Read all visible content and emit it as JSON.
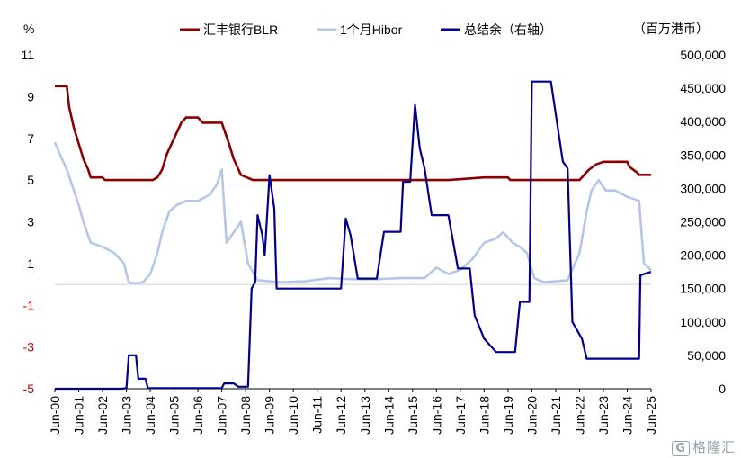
{
  "chart_data": {
    "type": "line",
    "left_unit": "%",
    "right_unit": "（百万港币）",
    "left_ylim": [
      -5,
      11
    ],
    "left_ticks": [
      11,
      9,
      7,
      5,
      3,
      1,
      -1,
      -3,
      -5
    ],
    "right_ylim": [
      0,
      500000
    ],
    "right_ticks": [
      "500,000",
      "450,000",
      "400,000",
      "350,000",
      "300,000",
      "250,000",
      "200,000",
      "150,000",
      "100,000",
      "50,000",
      "0"
    ],
    "x_labels": [
      "Jun-00",
      "Jun-01",
      "Jun-02",
      "Jun-03",
      "Jun-04",
      "Jun-05",
      "Jun-06",
      "Jun-07",
      "Jun-08",
      "Jun-09",
      "Jun-10",
      "Jun-11",
      "Jun-12",
      "Jun-13",
      "Jun-14",
      "Jun-15",
      "Jun-16",
      "Jun-17",
      "Jun-18",
      "Jun-19",
      "Jun-20",
      "Jun-21",
      "Jun-22",
      "Jun-23",
      "Jun-24",
      "Jun-25"
    ],
    "x_range": [
      2000.5,
      2025.5
    ],
    "legend_position": "top",
    "series": [
      {
        "name": "汇丰银行BLR",
        "axis": "left",
        "color": "#8b0000",
        "points": [
          [
            2000.5,
            9.5
          ],
          [
            2001.0,
            9.5
          ],
          [
            2001.1,
            8.5
          ],
          [
            2001.3,
            7.5
          ],
          [
            2001.5,
            6.75
          ],
          [
            2001.7,
            6.0
          ],
          [
            2001.9,
            5.5
          ],
          [
            2002.0,
            5.125
          ],
          [
            2002.5,
            5.125
          ],
          [
            2002.6,
            5.0
          ],
          [
            2003.5,
            5.0
          ],
          [
            2004.0,
            5.0
          ],
          [
            2004.3,
            5.0
          ],
          [
            2004.6,
            5.0
          ],
          [
            2004.8,
            5.125
          ],
          [
            2005.0,
            5.5
          ],
          [
            2005.2,
            6.25
          ],
          [
            2005.5,
            7.0
          ],
          [
            2005.8,
            7.75
          ],
          [
            2006.0,
            8.0
          ],
          [
            2006.5,
            8.0
          ],
          [
            2006.7,
            7.75
          ],
          [
            2007.5,
            7.75
          ],
          [
            2007.8,
            6.75
          ],
          [
            2008.0,
            6.0
          ],
          [
            2008.3,
            5.25
          ],
          [
            2008.8,
            5.0
          ],
          [
            2009.5,
            5.0
          ],
          [
            2012.0,
            5.0
          ],
          [
            2017.0,
            5.0
          ],
          [
            2018.5,
            5.125
          ],
          [
            2019.5,
            5.125
          ],
          [
            2019.6,
            5.0
          ],
          [
            2022.5,
            5.0
          ],
          [
            2022.7,
            5.25
          ],
          [
            2022.9,
            5.5
          ],
          [
            2023.2,
            5.75
          ],
          [
            2023.5,
            5.875
          ],
          [
            2024.5,
            5.875
          ],
          [
            2024.6,
            5.625
          ],
          [
            2024.9,
            5.375
          ],
          [
            2025.0,
            5.25
          ],
          [
            2025.5,
            5.25
          ]
        ]
      },
      {
        "name": "1个月Hibor",
        "axis": "left",
        "color": "#b4c7e7",
        "points": [
          [
            2000.5,
            6.8
          ],
          [
            2000.8,
            6.0
          ],
          [
            2001.0,
            5.5
          ],
          [
            2001.3,
            4.5
          ],
          [
            2001.5,
            3.8
          ],
          [
            2001.7,
            3.0
          ],
          [
            2002.0,
            2.0
          ],
          [
            2002.5,
            1.8
          ],
          [
            2003.0,
            1.5
          ],
          [
            2003.4,
            1.0
          ],
          [
            2003.6,
            0.1
          ],
          [
            2003.9,
            0.05
          ],
          [
            2004.2,
            0.1
          ],
          [
            2004.5,
            0.5
          ],
          [
            2004.8,
            1.5
          ],
          [
            2005.0,
            2.5
          ],
          [
            2005.3,
            3.5
          ],
          [
            2005.6,
            3.8
          ],
          [
            2006.0,
            4.0
          ],
          [
            2006.5,
            4.0
          ],
          [
            2007.0,
            4.3
          ],
          [
            2007.3,
            4.8
          ],
          [
            2007.5,
            5.5
          ],
          [
            2007.7,
            2.0
          ],
          [
            2008.0,
            2.5
          ],
          [
            2008.3,
            3.0
          ],
          [
            2008.6,
            1.0
          ],
          [
            2009.0,
            0.2
          ],
          [
            2010.0,
            0.1
          ],
          [
            2011.0,
            0.15
          ],
          [
            2012.0,
            0.3
          ],
          [
            2013.0,
            0.25
          ],
          [
            2014.0,
            0.25
          ],
          [
            2015.0,
            0.3
          ],
          [
            2016.0,
            0.3
          ],
          [
            2016.5,
            0.8
          ],
          [
            2017.0,
            0.5
          ],
          [
            2017.5,
            0.7
          ],
          [
            2018.0,
            1.2
          ],
          [
            2018.5,
            2.0
          ],
          [
            2019.0,
            2.2
          ],
          [
            2019.3,
            2.5
          ],
          [
            2019.7,
            2.0
          ],
          [
            2020.0,
            1.8
          ],
          [
            2020.3,
            1.5
          ],
          [
            2020.6,
            0.3
          ],
          [
            2021.0,
            0.1
          ],
          [
            2022.0,
            0.2
          ],
          [
            2022.5,
            1.5
          ],
          [
            2022.8,
            3.5
          ],
          [
            2023.0,
            4.5
          ],
          [
            2023.3,
            5.0
          ],
          [
            2023.6,
            4.5
          ],
          [
            2024.0,
            4.5
          ],
          [
            2024.5,
            4.2
          ],
          [
            2025.0,
            4.0
          ],
          [
            2025.2,
            1.0
          ],
          [
            2025.5,
            0.7
          ]
        ]
      },
      {
        "name": "总结余（右轴）",
        "axis": "right",
        "color": "#00008b",
        "points": [
          [
            2000.5,
            0
          ],
          [
            2003.3,
            0
          ],
          [
            2003.5,
            1000
          ],
          [
            2003.6,
            50000
          ],
          [
            2003.9,
            50000
          ],
          [
            2004.0,
            15000
          ],
          [
            2004.3,
            15000
          ],
          [
            2004.4,
            1000
          ],
          [
            2007.5,
            1000
          ],
          [
            2007.6,
            8000
          ],
          [
            2008.0,
            8000
          ],
          [
            2008.2,
            3000
          ],
          [
            2008.6,
            3000
          ],
          [
            2008.75,
            150000
          ],
          [
            2008.9,
            160000
          ],
          [
            2009.0,
            260000
          ],
          [
            2009.2,
            230000
          ],
          [
            2009.3,
            200000
          ],
          [
            2009.5,
            320000
          ],
          [
            2009.7,
            270000
          ],
          [
            2009.8,
            150000
          ],
          [
            2010.5,
            150000
          ],
          [
            2011.0,
            150000
          ],
          [
            2012.5,
            150000
          ],
          [
            2012.7,
            255000
          ],
          [
            2012.9,
            230000
          ],
          [
            2013.2,
            165000
          ],
          [
            2014.0,
            165000
          ],
          [
            2014.3,
            235000
          ],
          [
            2015.0,
            235000
          ],
          [
            2015.1,
            310000
          ],
          [
            2015.4,
            310000
          ],
          [
            2015.6,
            425000
          ],
          [
            2015.8,
            360000
          ],
          [
            2016.0,
            330000
          ],
          [
            2016.3,
            260000
          ],
          [
            2017.0,
            260000
          ],
          [
            2017.4,
            180000
          ],
          [
            2017.9,
            180000
          ],
          [
            2018.1,
            110000
          ],
          [
            2018.5,
            75000
          ],
          [
            2019.0,
            55000
          ],
          [
            2019.8,
            55000
          ],
          [
            2020.0,
            130000
          ],
          [
            2020.4,
            130000
          ],
          [
            2020.5,
            460000
          ],
          [
            2021.3,
            460000
          ],
          [
            2021.8,
            340000
          ],
          [
            2022.0,
            330000
          ],
          [
            2022.2,
            100000
          ],
          [
            2022.6,
            75000
          ],
          [
            2022.8,
            45000
          ],
          [
            2024.5,
            45000
          ],
          [
            2025.0,
            45000
          ],
          [
            2025.05,
            170000
          ],
          [
            2025.5,
            175000
          ]
        ]
      }
    ]
  },
  "watermark": "格隆汇"
}
